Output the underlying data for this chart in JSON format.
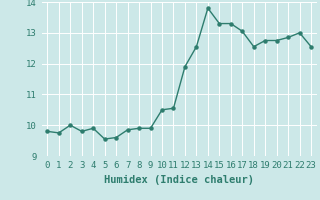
{
  "x": [
    0,
    1,
    2,
    3,
    4,
    5,
    6,
    7,
    8,
    9,
    10,
    11,
    12,
    13,
    14,
    15,
    16,
    17,
    18,
    19,
    20,
    21,
    22,
    23
  ],
  "y": [
    9.8,
    9.75,
    10.0,
    9.8,
    9.9,
    9.55,
    9.6,
    9.85,
    9.9,
    9.9,
    10.5,
    10.55,
    11.9,
    12.55,
    13.8,
    13.3,
    13.3,
    13.05,
    12.55,
    12.75,
    12.75,
    12.85,
    13.0,
    12.55
  ],
  "line_color": "#2e7d6e",
  "marker": "o",
  "markersize": 2.2,
  "linewidth": 1.0,
  "xlabel": "Humidex (Indice chaleur)",
  "ylim": [
    9.0,
    14.0
  ],
  "xlim": [
    -0.5,
    23.5
  ],
  "yticks": [
    9,
    10,
    11,
    12,
    13,
    14
  ],
  "xticks": [
    0,
    1,
    2,
    3,
    4,
    5,
    6,
    7,
    8,
    9,
    10,
    11,
    12,
    13,
    14,
    15,
    16,
    17,
    18,
    19,
    20,
    21,
    22,
    23
  ],
  "background_color": "#cce8e8",
  "grid_color": "#ffffff",
  "tick_color": "#2e7d6e",
  "label_color": "#2e7d6e",
  "xlabel_fontsize": 7.5,
  "tick_fontsize": 6.5
}
